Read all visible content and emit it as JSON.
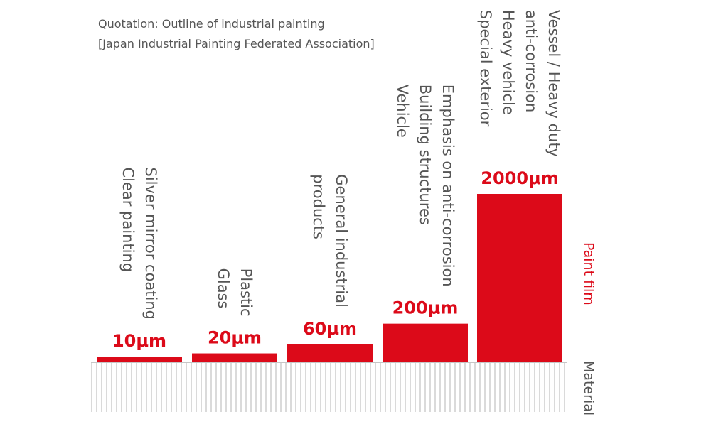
{
  "quotation": {
    "line1": "Quotation: Outline of industrial painting",
    "line2": "[Japan Industrial Painting Federated Association]"
  },
  "colors": {
    "paint": "#dc0a19",
    "text": "#555555",
    "material": "#b4b4b4"
  },
  "chart_data": {
    "type": "bar",
    "title": "",
    "scale": "logarithmic",
    "categories": [
      [
        "Silver mirror coating",
        "Clear painting"
      ],
      [
        "Plastic",
        "Glass"
      ],
      [
        "General industrial",
        "products"
      ],
      [
        "Emphasis on anti-corrosion",
        "Building structures",
        "Vehicle"
      ],
      [
        "Vessel / Heavy duty",
        "anti-corrosion",
        "Heavy vehicle",
        "Special exterior"
      ]
    ],
    "values": [
      10,
      20,
      60,
      200,
      2000
    ],
    "value_labels": [
      "10μm",
      "20μm",
      "60μm",
      "200μm",
      "2000μm"
    ],
    "unit": "μm",
    "series": [
      {
        "name": "Paint film",
        "values": [
          10,
          20,
          60,
          200,
          2000
        ]
      }
    ],
    "legend": {
      "paint_label": "Paint film",
      "material_label": "Material"
    }
  }
}
